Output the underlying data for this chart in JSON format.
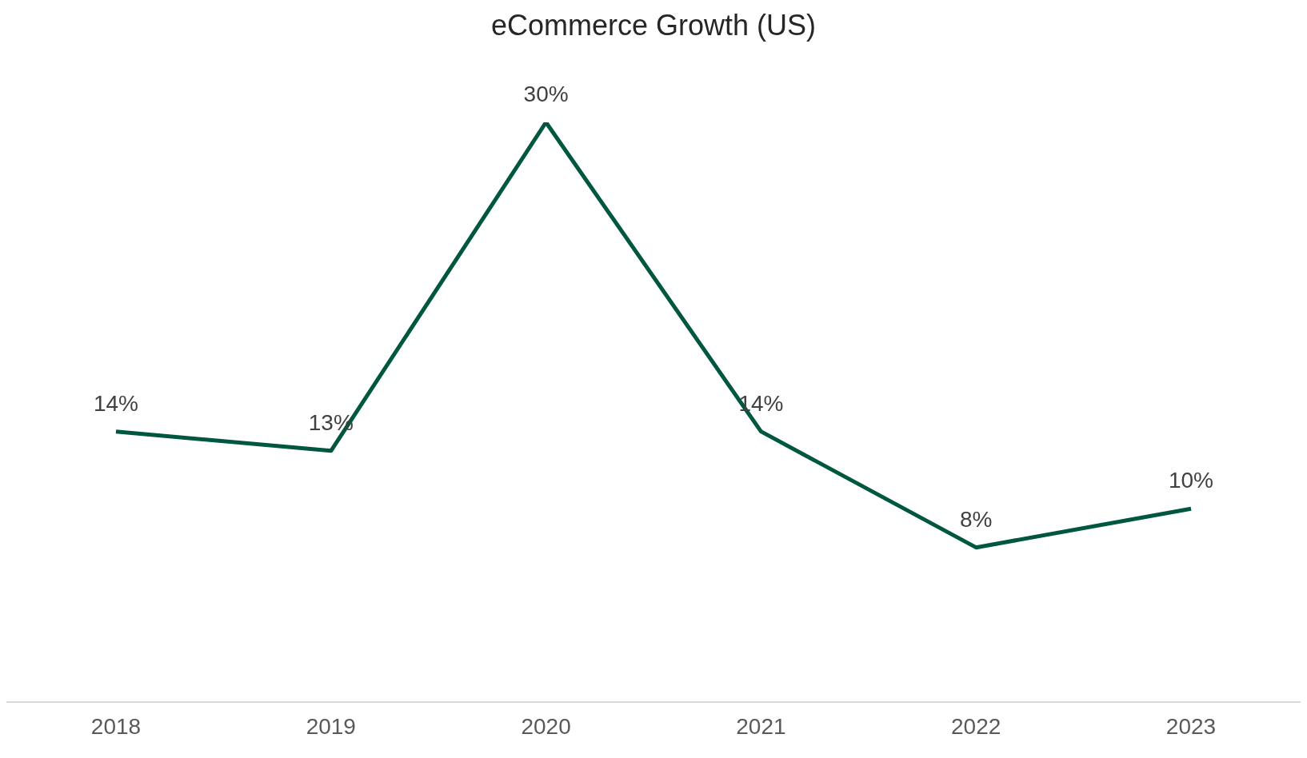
{
  "chart_data": {
    "type": "line",
    "title": "eCommerce Growth (US)",
    "categories": [
      "2018",
      "2019",
      "2020",
      "2021",
      "2022",
      "2023"
    ],
    "series": [
      {
        "color": "#00573f",
        "values": [
          14,
          13,
          30,
          14,
          8,
          10
        ],
        "value_labels": [
          "14%",
          "13%",
          "30%",
          "14%",
          "8%",
          "10%"
        ]
      }
    ],
    "tick_labels": "x",
    "marker": "none",
    "line_style": "solid"
  }
}
